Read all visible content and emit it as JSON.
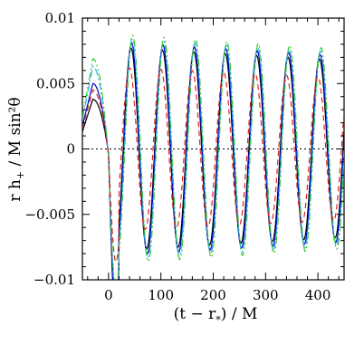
{
  "chart_data": {
    "type": "line",
    "title": "",
    "xlabel": "(t − r",
    "xlabel_sub": "*",
    "xlabel_tail": ") / M",
    "ylabel": "r h",
    "ylabel_sub": "+",
    "ylabel_tail": " / M sin²θ",
    "xlim": [
      -50,
      450
    ],
    "ylim": [
      -0.01,
      0.01
    ],
    "x_ticks": [
      0,
      100,
      200,
      300,
      400
    ],
    "y_ticks": [
      -0.01,
      -0.005,
      0,
      0.005,
      0.01
    ],
    "x_tick_labels": [
      "0",
      "100",
      "200",
      "300",
      "400"
    ],
    "y_tick_labels": [
      "−0.01",
      "−0.005",
      "0",
      "0.005",
      "0.01"
    ],
    "grid": false,
    "zero_line": true,
    "series": [
      {
        "style": "solid",
        "color": "#000000",
        "start_level": 0.0038,
        "amplitude": 0.0077,
        "period": 60,
        "phase_peak": 43,
        "dip": -0.013
      },
      {
        "style": "solid",
        "color": "#0000cc",
        "start_level": 0.005,
        "amplitude": 0.0081,
        "period": 60,
        "phase_peak": 44,
        "dip": -0.012
      },
      {
        "style": "dashdot",
        "color": "#33aaff",
        "start_level": 0.0063,
        "amplitude": 0.0084,
        "period": 60,
        "phase_peak": 45,
        "dip": -0.011
      },
      {
        "style": "dashdotdot",
        "color": "#33cc33",
        "start_level": 0.0069,
        "amplitude": 0.0087,
        "period": 60,
        "phase_peak": 46,
        "dip": -0.0105
      },
      {
        "style": "dashed",
        "color": "#dd2222",
        "start_level": 0.0045,
        "amplitude": 0.0062,
        "period": 60,
        "phase_peak": 40,
        "dip": -0.0085
      }
    ]
  }
}
